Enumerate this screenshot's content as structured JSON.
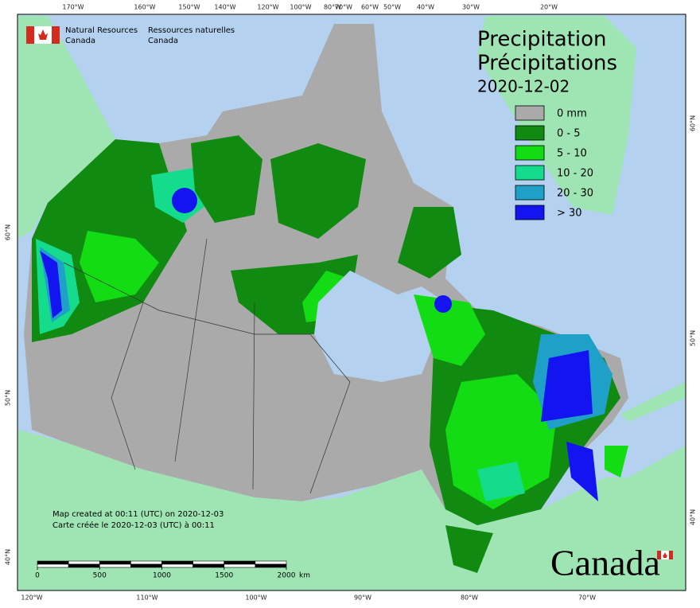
{
  "header": {
    "org_en": [
      "Natural Resources",
      "Canada"
    ],
    "org_fr": [
      "Ressources naturelles",
      "Canada"
    ]
  },
  "title": [
    "Precipitation",
    "Précipitations"
  ],
  "date": "2020-12-02",
  "legend": [
    {
      "label": "0 mm",
      "color": "#aaaaaa"
    },
    {
      "label": "0 - 5",
      "color": "#118a11"
    },
    {
      "label": "5 - 10",
      "color": "#14dc14"
    },
    {
      "label": "10 - 20",
      "color": "#14dc8c"
    },
    {
      "label": "20 - 30",
      "color": "#1ea0c8"
    },
    {
      "label": "> 30",
      "color": "#1414f0"
    }
  ],
  "top_labels": [
    "170°W",
    "160°W",
    "150°W",
    "140°W",
    "120°W",
    "100°W",
    "80°W",
    "70°W",
    "60°W",
    "50°W",
    "40°W",
    "30°W",
    "20°W"
  ],
  "bottom_labels": [
    "120°W",
    "110°W",
    "100°W",
    "90°W",
    "80°W",
    "70°W"
  ],
  "left_labels": [
    "60°N",
    "50°N",
    "40°N"
  ],
  "right_labels": [
    "60°N",
    "50°N",
    "40°N"
  ],
  "credits": [
    "Map created at 00:11 (UTC) on 2020-12-03",
    "Carte créée le 2020-12-03 (UTC) à 00:11"
  ],
  "scale": {
    "ticks": [
      0,
      500,
      1000,
      1500,
      2000
    ],
    "unit": "km"
  },
  "wordmark": "Canada"
}
